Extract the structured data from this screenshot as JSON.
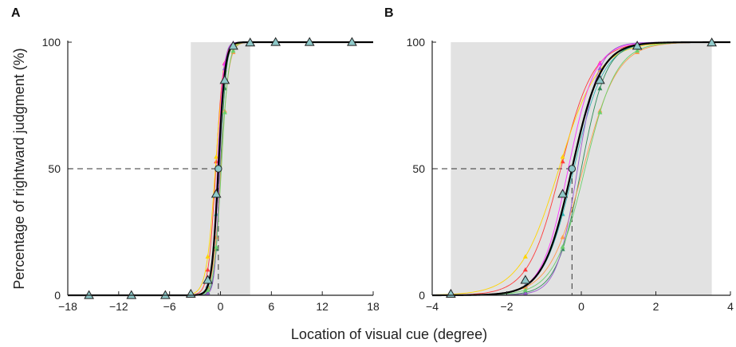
{
  "figure": {
    "ylabel": "Percentage of rightward judgment (%)",
    "xlabel": "Location of visual cue (degree)"
  },
  "colors": {
    "shade": "#e2e2e2",
    "mean_curve": "#000000",
    "marker_fill": "#8ec9c9",
    "marker_edge": "#222222",
    "subject_curves": [
      "#ff3b3b",
      "#ffd400",
      "#ff33ff",
      "#33b5b5",
      "#2e8b57",
      "#ff9a4d",
      "#9b59d0",
      "#6bd06b"
    ]
  },
  "chart_data": [
    {
      "type": "line",
      "panel": "A",
      "xlim": [
        -18,
        18
      ],
      "ylim": [
        0,
        100
      ],
      "xticks": [
        -18,
        -12,
        -6,
        0,
        6,
        12,
        18
      ],
      "yticks": [
        0,
        50,
        100
      ],
      "shaded_region": [
        -3.5,
        3.5
      ],
      "pse": -0.25,
      "mean_curve": {
        "pse": -0.25,
        "slope": 2.6
      },
      "subject_curves": [
        {
          "pse": -0.55,
          "slope": 2.3
        },
        {
          "pse": -0.6,
          "slope": 1.9
        },
        {
          "pse": -0.35,
          "slope": 2.8
        },
        {
          "pse": -0.2,
          "slope": 2.5
        },
        {
          "pse": 0.0,
          "slope": 3.0
        },
        {
          "pse": 0.05,
          "slope": 2.2
        },
        {
          "pse": -0.1,
          "slope": 3.6
        },
        {
          "pse": 0.1,
          "slope": 2.4
        }
      ],
      "points": {
        "x": [
          -15.5,
          -10.5,
          -6.5,
          -3.5,
          -1.5,
          -0.5,
          0.5,
          1.5,
          3.5,
          6.5,
          10.5,
          15.5
        ],
        "y": [
          0,
          0,
          0,
          0.5,
          6,
          40,
          85,
          98.5,
          99.8,
          100,
          100,
          100
        ]
      }
    },
    {
      "type": "line",
      "panel": "B",
      "xlim": [
        -4,
        4
      ],
      "ylim": [
        0,
        100
      ],
      "xticks": [
        -4,
        -2,
        0,
        2,
        4
      ],
      "yticks": [
        0,
        50,
        100
      ],
      "shaded_region": [
        -3.5,
        3.5
      ],
      "pse": -0.25,
      "mean_curve": {
        "pse": -0.25,
        "slope": 2.6
      },
      "subject_curves": [
        {
          "pse": -0.55,
          "slope": 2.3
        },
        {
          "pse": -0.6,
          "slope": 1.9
        },
        {
          "pse": -0.35,
          "slope": 2.8
        },
        {
          "pse": -0.2,
          "slope": 2.5
        },
        {
          "pse": 0.0,
          "slope": 3.0
        },
        {
          "pse": 0.05,
          "slope": 2.2
        },
        {
          "pse": -0.1,
          "slope": 3.6
        },
        {
          "pse": 0.1,
          "slope": 2.4
        }
      ],
      "points": {
        "x": [
          -3.5,
          -1.5,
          -0.5,
          0.5,
          1.5,
          3.5
        ],
        "y": [
          0.5,
          6,
          40,
          85,
          98.5,
          99.8
        ]
      }
    }
  ]
}
